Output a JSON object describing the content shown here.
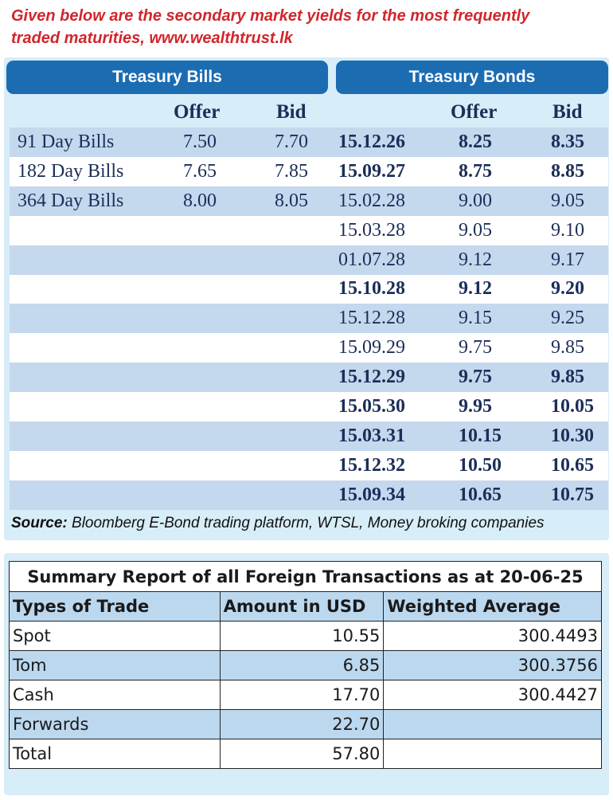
{
  "intro": {
    "line1": "Given below are the secondary market yields for the most frequently",
    "line2": "traded maturities, www.wealthtrust.lk"
  },
  "headers": {
    "bills": "Treasury Bills",
    "bonds": "Treasury Bonds"
  },
  "columns": {
    "bills_offer": "Offer",
    "bills_bid": "Bid",
    "bonds_offer": "Offer",
    "bonds_bid": "Bid"
  },
  "bills": [
    {
      "name": "91 Day Bills",
      "offer": "7.50",
      "bid": "7.70"
    },
    {
      "name": "182 Day Bills",
      "offer": "7.65",
      "bid": "7.85"
    },
    {
      "name": "364 Day Bills",
      "offer": "8.00",
      "bid": "8.05"
    }
  ],
  "bonds": [
    {
      "maturity": "15.12.26",
      "offer": "8.25",
      "bid": "8.35"
    },
    {
      "maturity": "15.09.27",
      "offer": "8.75",
      "bid": "8.85"
    },
    {
      "maturity": "15.02.28",
      "offer": "9.00",
      "bid": "9.05"
    },
    {
      "maturity": "15.03.28",
      "offer": "9.05",
      "bid": "9.10"
    },
    {
      "maturity": "01.07.28",
      "offer": "9.12",
      "bid": "9.17"
    },
    {
      "maturity": "15.10.28",
      "offer": "9.12",
      "bid": "9.20"
    },
    {
      "maturity": "15.12.28",
      "offer": "9.15",
      "bid": "9.25"
    },
    {
      "maturity": "15.09.29",
      "offer": "9.75",
      "bid": "9.85"
    },
    {
      "maturity": "15.12.29",
      "offer": "9.75",
      "bid": "9.85"
    },
    {
      "maturity": "15.05.30",
      "offer": "9.95",
      "bid": "10.05"
    },
    {
      "maturity": "15.03.31",
      "offer": "10.15",
      "bid": "10.30"
    },
    {
      "maturity": "15.12.32",
      "offer": "10.50",
      "bid": "10.65"
    },
    {
      "maturity": "15.09.34",
      "offer": "10.65",
      "bid": "10.75"
    }
  ],
  "source": {
    "label": "Source:",
    "text": " Bloomberg E-Bond trading platform, WTSL, Money broking companies"
  },
  "summary": {
    "title": "Summary Report of all Foreign Transactions as at 20-06-25",
    "col_type": "Types of Trade",
    "col_amount": "Amount in USD",
    "col_avg": "Weighted Average",
    "rows": [
      {
        "type": "Spot",
        "amount": "10.55",
        "avg": "300.4493"
      },
      {
        "type": "Tom",
        "amount": "6.85",
        "avg": "300.3756"
      },
      {
        "type": "Cash",
        "amount": "17.70",
        "avg": "300.4427"
      },
      {
        "type": "Forwards",
        "amount": "22.70",
        "avg": ""
      },
      {
        "type": "Total",
        "amount": "57.80",
        "avg": ""
      }
    ]
  }
}
